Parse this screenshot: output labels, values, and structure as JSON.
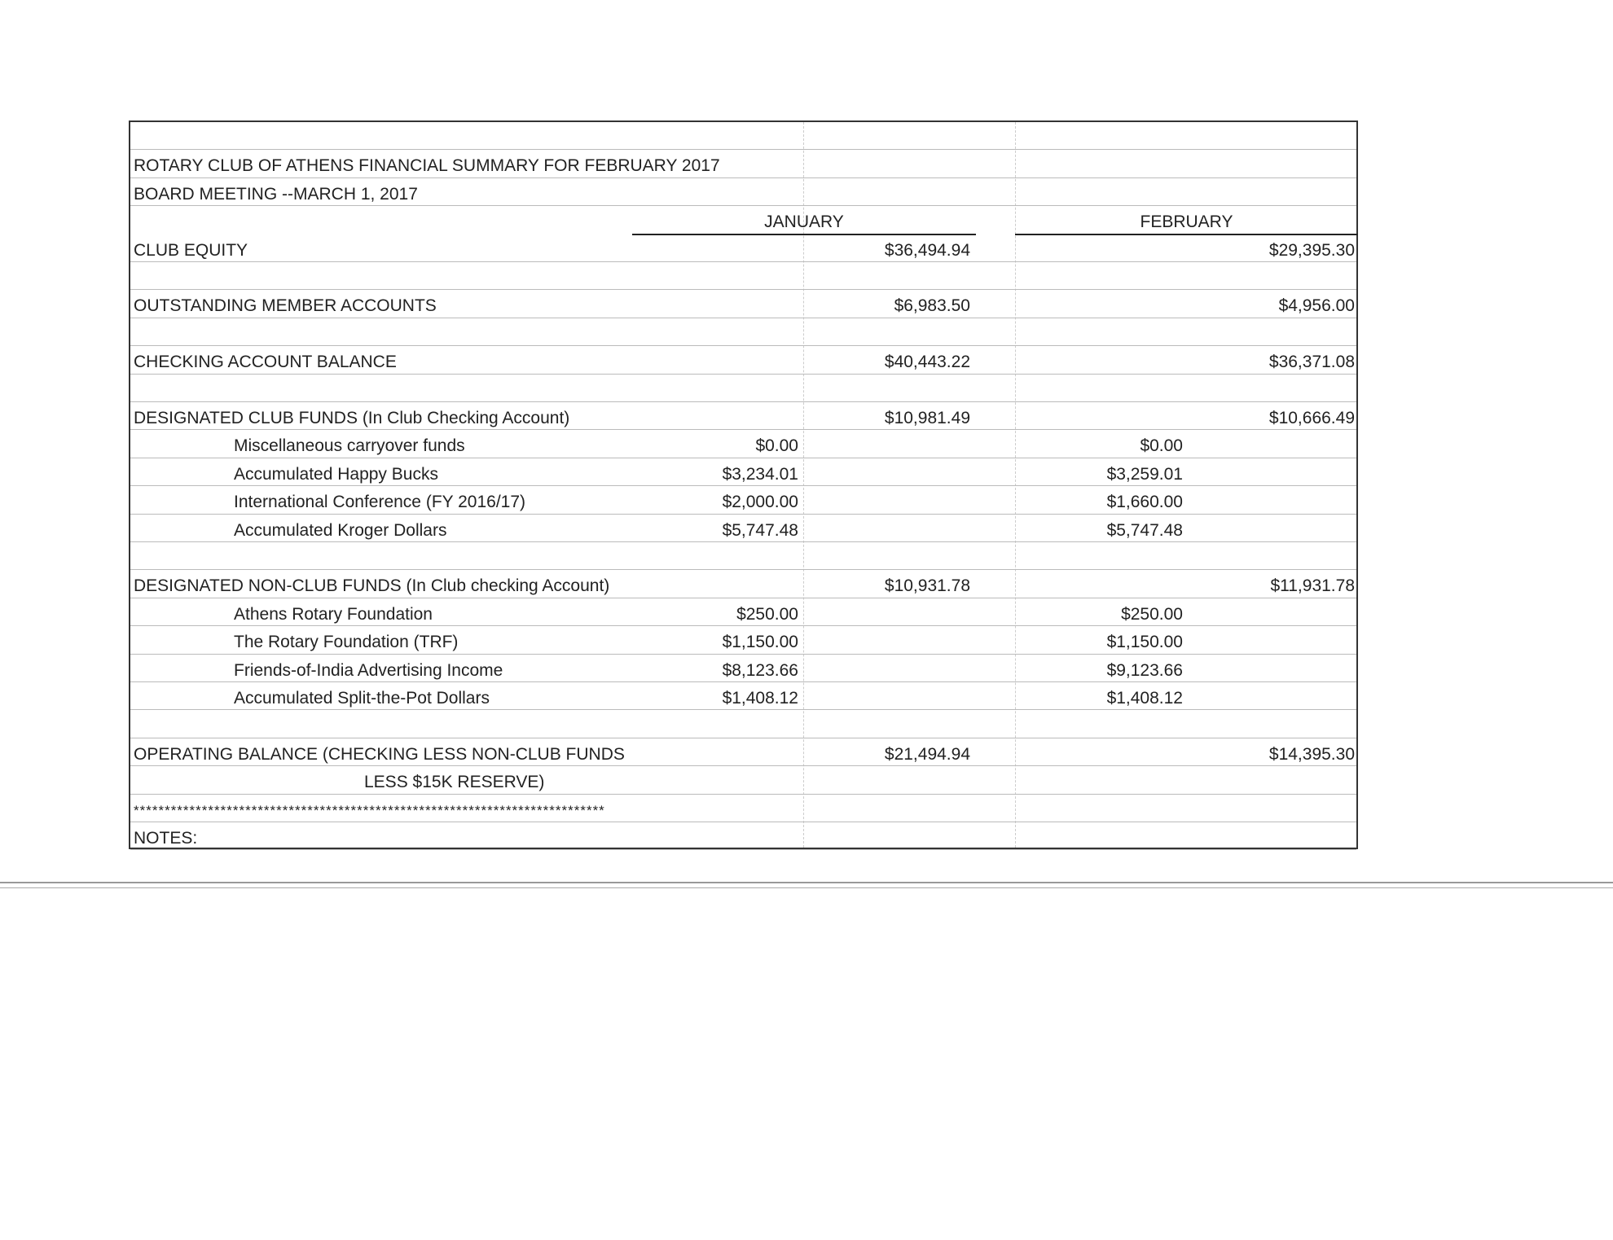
{
  "document": {
    "title": "ROTARY CLUB OF ATHENS FINANCIAL SUMMARY FOR FEBRUARY 2017",
    "subtitle": "BOARD MEETING --MARCH 1, 2017",
    "columns": {
      "january": "JANUARY",
      "february": "FEBRUARY"
    },
    "rows": [
      {
        "label": "CLUB EQUITY",
        "jan_total": "$36,494.94",
        "feb_total": "$29,395.30"
      },
      {
        "label": "OUTSTANDING MEMBER ACCOUNTS",
        "jan_total": "$6,983.50",
        "feb_total": "$4,956.00"
      },
      {
        "label": "CHECKING ACCOUNT BALANCE",
        "jan_total": "$40,443.22",
        "feb_total": "$36,371.08"
      },
      {
        "label": "DESIGNATED CLUB FUNDS (In Club Checking Account)",
        "jan_total": "$10,981.49",
        "feb_total": "$10,666.49",
        "items": [
          {
            "label": "Miscellaneous carryover funds",
            "jan": "$0.00",
            "feb": "$0.00"
          },
          {
            "label": "Accumulated Happy Bucks",
            "jan": "$3,234.01",
            "feb": "$3,259.01"
          },
          {
            "label": "International Conference (FY 2016/17)",
            "jan": "$2,000.00",
            "feb": "$1,660.00"
          },
          {
            "label": "Accumulated Kroger Dollars",
            "jan": "$5,747.48",
            "feb": "$5,747.48"
          }
        ]
      },
      {
        "label": "DESIGNATED NON-CLUB FUNDS (In Club checking Account)",
        "jan_total": "$10,931.78",
        "feb_total": "$11,931.78",
        "items": [
          {
            "label": "Athens Rotary Foundation",
            "jan": "$250.00",
            "feb": "$250.00"
          },
          {
            "label": "The Rotary Foundation (TRF)",
            "jan": "$1,150.00",
            "feb": "$1,150.00"
          },
          {
            "label": "Friends-of-India Advertising Income",
            "jan": "$8,123.66",
            "feb": "$9,123.66"
          },
          {
            "label": "Accumulated Split-the-Pot Dollars",
            "jan": "$1,408.12",
            "feb": "$1,408.12"
          }
        ]
      },
      {
        "label": "OPERATING BALANCE (CHECKING LESS NON-CLUB FUNDS",
        "label_line2": "LESS $15K RESERVE)",
        "jan_total": "$21,494.94",
        "feb_total": "$14,395.30"
      }
    ],
    "separator": "****************************************************************************",
    "notes_label": "NOTES:"
  }
}
